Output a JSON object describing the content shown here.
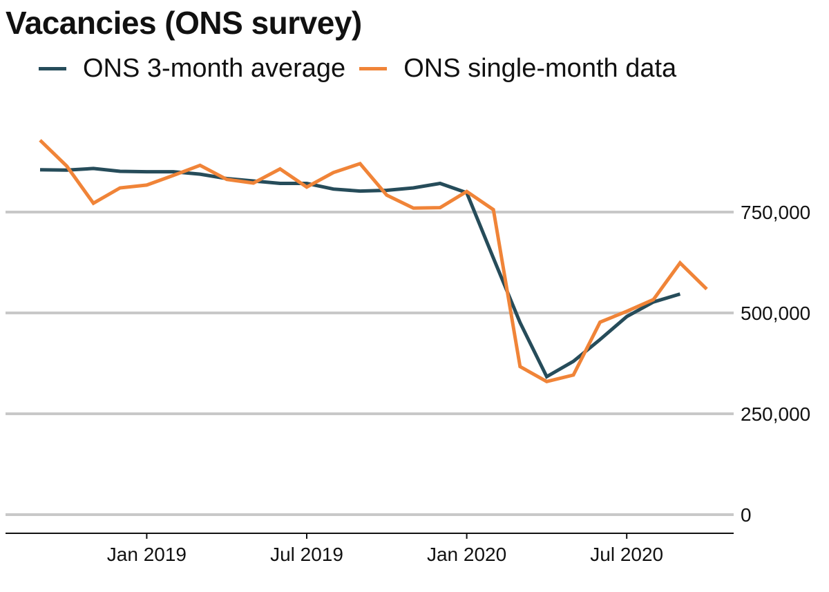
{
  "chart_data": {
    "type": "line",
    "title": "Vacancies (ONS survey)",
    "xlabel": "",
    "ylabel": "",
    "x": [
      "2018-09",
      "2018-10",
      "2018-11",
      "2018-12",
      "2019-01",
      "2019-02",
      "2019-03",
      "2019-04",
      "2019-05",
      "2019-06",
      "2019-07",
      "2019-08",
      "2019-09",
      "2019-10",
      "2019-11",
      "2019-12",
      "2020-01",
      "2020-02",
      "2020-03",
      "2020-04",
      "2020-05",
      "2020-06",
      "2020-07",
      "2020-08",
      "2020-09",
      "2020-10"
    ],
    "series": [
      {
        "name": "ONS 3-month average",
        "color": "#264c5a",
        "values": [
          855000,
          854000,
          858000,
          851000,
          850000,
          850000,
          844000,
          833000,
          827000,
          821000,
          821000,
          807000,
          802000,
          804000,
          810000,
          821000,
          798000,
          636000,
          476000,
          342000,
          380000,
          434000,
          491000,
          527000,
          547000,
          null
        ]
      },
      {
        "name": "ONS single-month data",
        "color": "#f08438",
        "values": [
          928000,
          864000,
          772000,
          810000,
          817000,
          841000,
          866000,
          831000,
          822000,
          857000,
          812000,
          848000,
          870000,
          792000,
          760000,
          761000,
          801000,
          756000,
          367000,
          330000,
          346000,
          477000,
          504000,
          533000,
          624000,
          559000
        ]
      }
    ],
    "yticks": [
      "0",
      "250,000",
      "500,000",
      "750,000"
    ],
    "ytick_values": [
      0,
      250000,
      500000,
      750000
    ],
    "xticks": [
      {
        "label": "Jan 2019",
        "x": "2019-01"
      },
      {
        "label": "Jul 2019",
        "x": "2019-07"
      },
      {
        "label": "Jan 2020",
        "x": "2020-01"
      },
      {
        "label": "Jul 2020",
        "x": "2020-07"
      }
    ],
    "ylim": [
      0,
      1000000
    ],
    "grid": true,
    "legend_position": "top"
  }
}
